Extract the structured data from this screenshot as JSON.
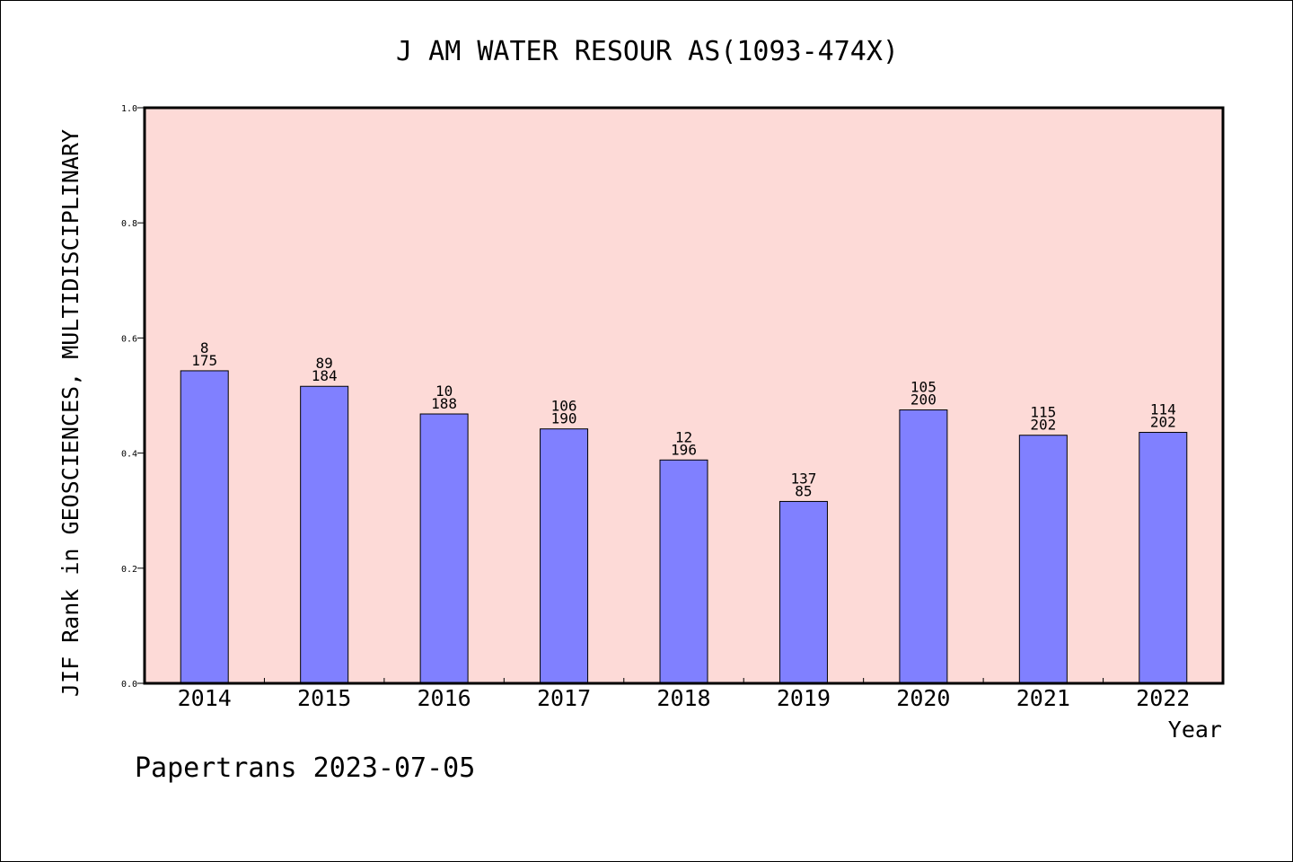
{
  "chart_data": {
    "type": "bar",
    "title": "J AM WATER RESOUR AS(1093-474X)",
    "ylabel": "JIF Rank in GEOSCIENCES, MULTIDISCIPLINARY",
    "xlabel": "Year",
    "categories": [
      "2014",
      "2015",
      "2016",
      "2017",
      "2018",
      "2019",
      "2020",
      "2021",
      "2022"
    ],
    "values": [
      0.543,
      0.516,
      0.468,
      0.442,
      0.388,
      0.316,
      0.475,
      0.431,
      0.436
    ],
    "label_top": [
      "8",
      "89",
      "10",
      "106",
      "12",
      "137",
      "105",
      "115",
      "114"
    ],
    "label_bottom": [
      "175",
      "184",
      "188",
      "190",
      "196",
      "85",
      "200",
      "202",
      "202"
    ],
    "yticks": [
      "0.0",
      "0.2",
      "0.4",
      "0.6",
      "0.8",
      "1.0"
    ],
    "ylim": [
      0,
      1
    ],
    "grid": false,
    "colors": {
      "plot_bg": "#fddad7",
      "bar": "#8080ff"
    }
  },
  "footer": "Papertrans 2023-07-05"
}
